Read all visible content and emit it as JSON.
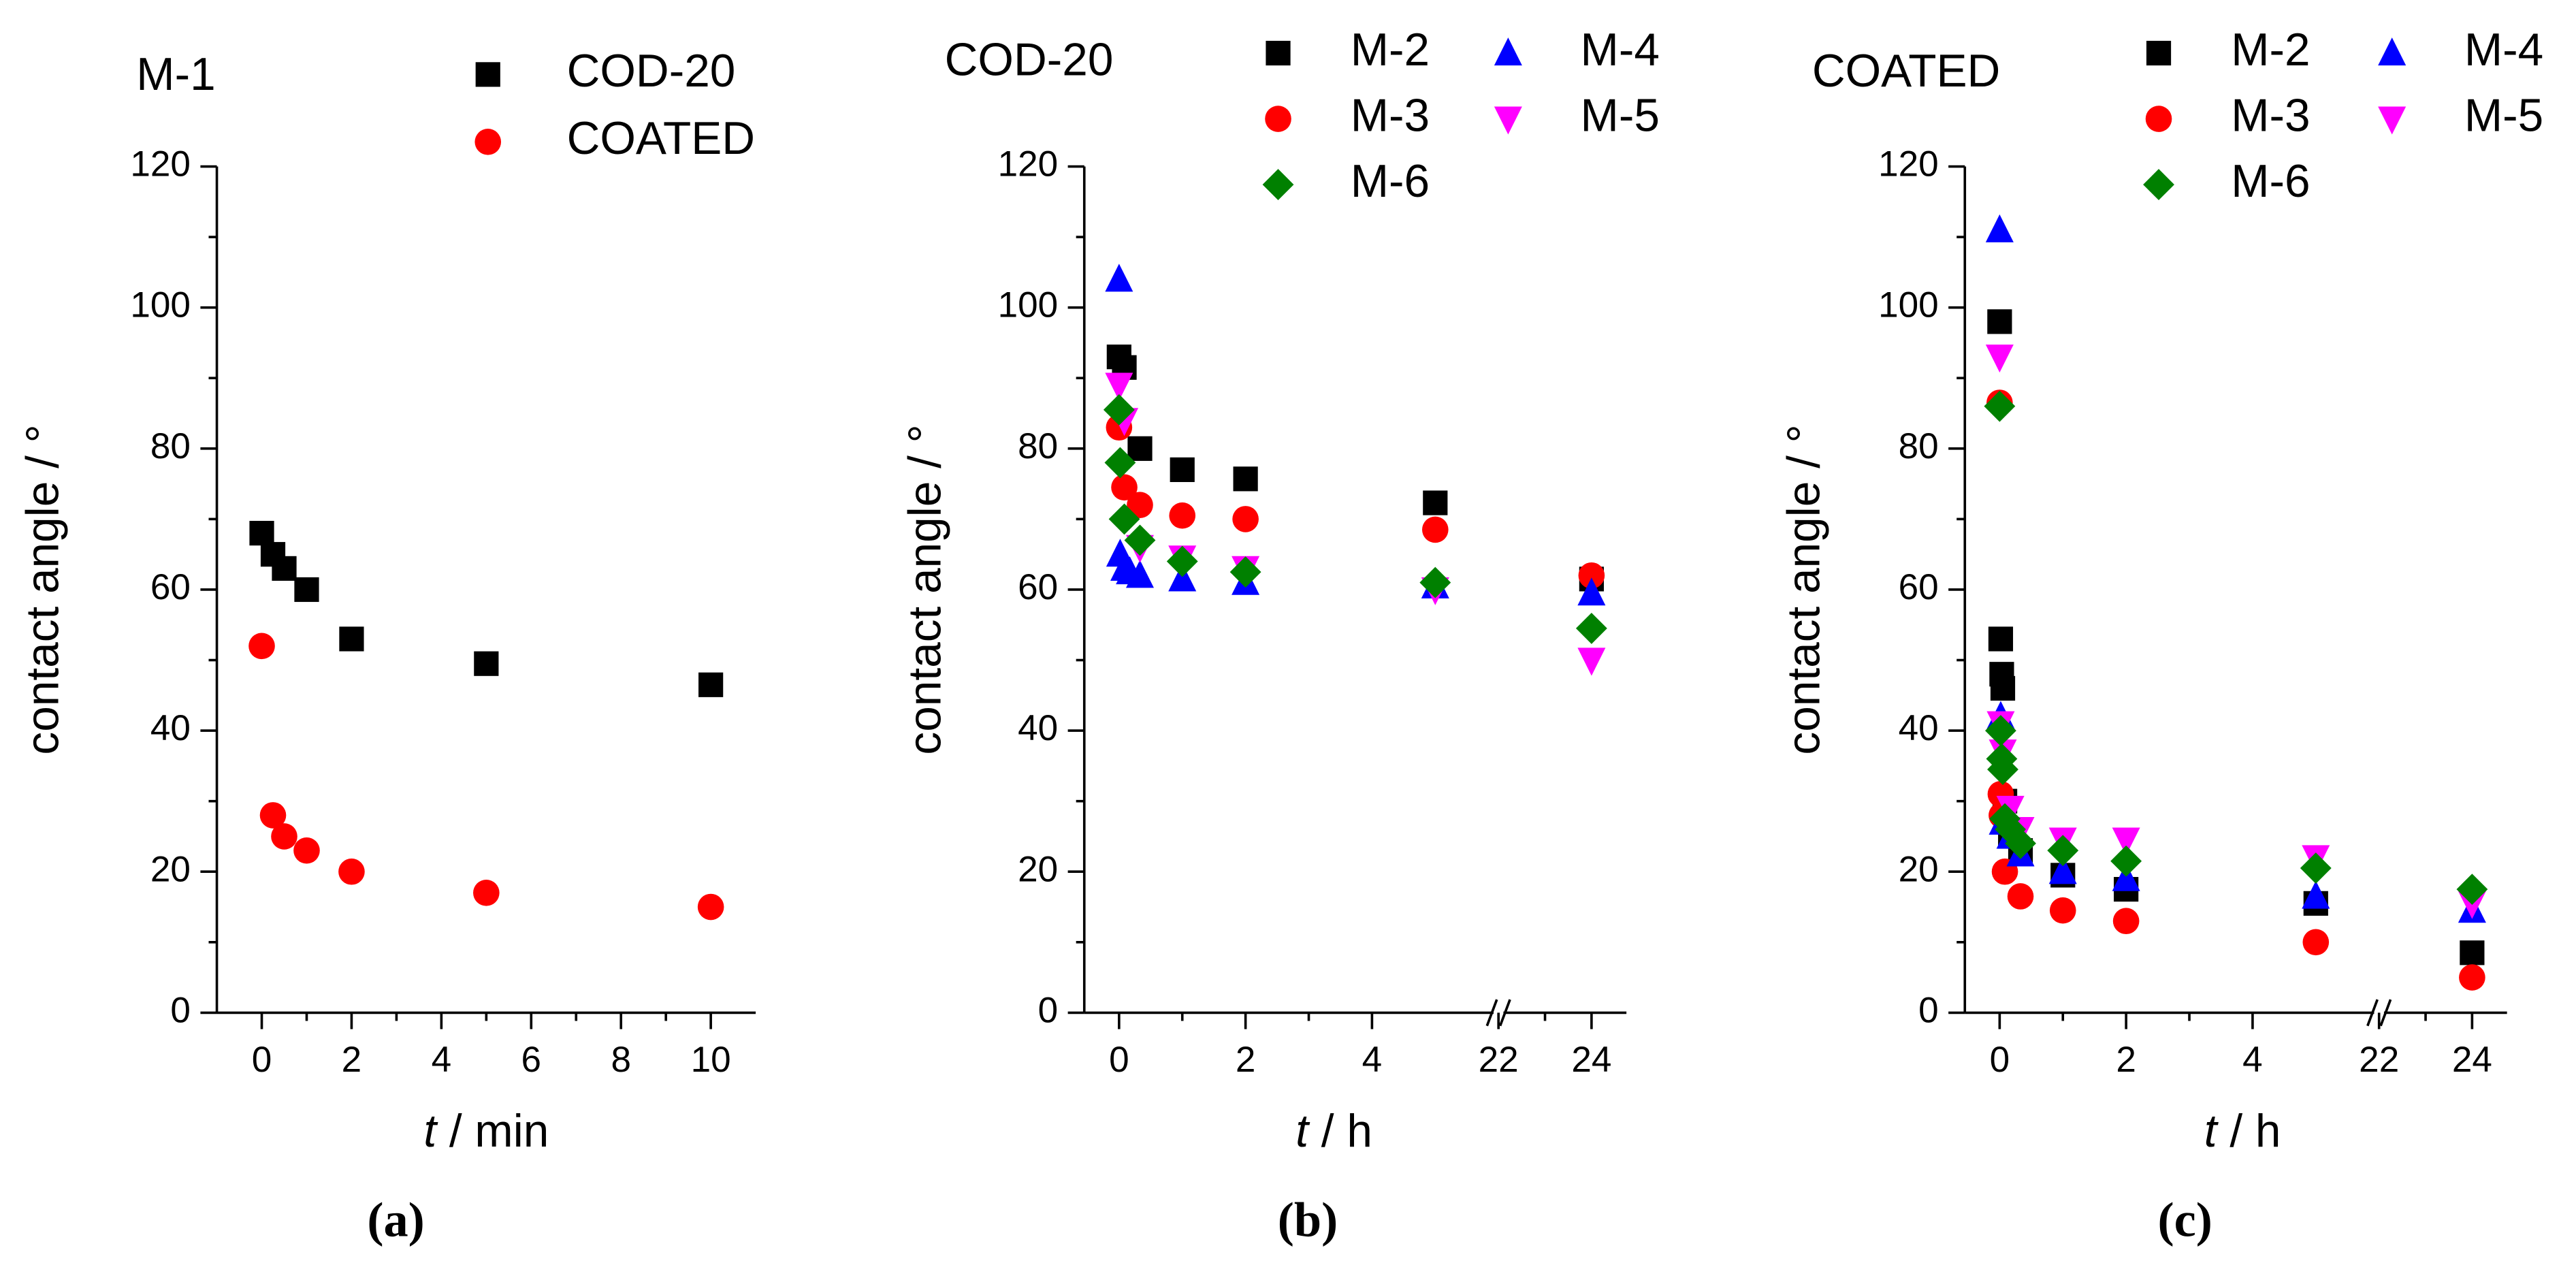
{
  "chart_data": [
    {
      "type": "scatter",
      "title": "M-1",
      "x_label_symbol": "t",
      "x_label_unit": "/ min",
      "y_label": "contact angle / °",
      "panel_label": "(a)",
      "xlim": [
        -1,
        11
      ],
      "xticks": [
        0,
        2,
        4,
        6,
        8,
        10
      ],
      "ylim": [
        0,
        120
      ],
      "yticks": [
        0,
        20,
        40,
        60,
        80,
        100,
        120
      ],
      "series": [
        {
          "name": "COD-20",
          "color": "#000000",
          "marker": "square",
          "x": [
            0,
            0.25,
            0.5,
            1,
            2,
            5,
            10
          ],
          "values": [
            68,
            65,
            63,
            60,
            53,
            49.5,
            46.5
          ]
        },
        {
          "name": "COATED",
          "color": "#ff0000",
          "marker": "circle",
          "x": [
            0,
            0.25,
            0.5,
            1,
            2,
            5,
            10
          ],
          "values": [
            52,
            28,
            25,
            23,
            20,
            17,
            15
          ]
        }
      ]
    },
    {
      "type": "scatter",
      "title": "COD-20",
      "x_label_symbol": "t",
      "x_label_unit": "/ h",
      "y_label": "contact angle / °",
      "panel_label": "(b)",
      "xlim": [
        -0.55,
        24.75
      ],
      "xbreak": [
        6,
        22
      ],
      "xticks": [
        0,
        2,
        4,
        22,
        24
      ],
      "ylim": [
        0,
        120
      ],
      "yticks": [
        0,
        20,
        40,
        60,
        80,
        100,
        120
      ],
      "series": [
        {
          "name": "M-2",
          "color": "#000000",
          "marker": "square",
          "x": [
            0,
            0.083,
            0.33,
            1,
            2,
            5,
            24
          ],
          "values": [
            93,
            91.5,
            80,
            77,
            75.7,
            72.3,
            61.5
          ]
        },
        {
          "name": "M-3",
          "color": "#ff0000",
          "marker": "circle",
          "x": [
            0,
            0.083,
            0.33,
            1,
            2,
            5,
            24
          ],
          "values": [
            83,
            74.5,
            72,
            70.5,
            70,
            68.5,
            62
          ]
        },
        {
          "name": "M-4",
          "color": "#0000ff",
          "marker": "triangle",
          "x": [
            0,
            0.017,
            0.083,
            0.17,
            0.33,
            1,
            2,
            5,
            24
          ],
          "values": [
            104,
            65,
            63,
            62.5,
            62,
            61.5,
            61,
            60.5,
            59.5
          ]
        },
        {
          "name": "M-5",
          "color": "#ff00ff",
          "marker": "triangle-down",
          "x": [
            0,
            0.083,
            0.33,
            1,
            2,
            5,
            24
          ],
          "values": [
            89,
            84,
            66,
            64.5,
            63,
            60,
            50
          ]
        },
        {
          "name": "M-6",
          "color": "#008000",
          "marker": "diamond",
          "x": [
            0,
            0.017,
            0.083,
            0.33,
            1,
            2,
            5,
            24
          ],
          "values": [
            85.5,
            78,
            70,
            67,
            64,
            62.5,
            61,
            54.5
          ]
        }
      ]
    },
    {
      "type": "scatter",
      "title": "COATED",
      "x_label_symbol": "t",
      "x_label_unit": "/ h",
      "y_label": "contact angle / °",
      "panel_label": "(c)",
      "xlim": [
        -0.55,
        24.75
      ],
      "xbreak": [
        6,
        22
      ],
      "xticks": [
        0,
        2,
        4,
        22,
        24
      ],
      "ylim": [
        0,
        120
      ],
      "yticks": [
        0,
        20,
        40,
        60,
        80,
        100,
        120
      ],
      "series": [
        {
          "name": "M-2",
          "color": "#000000",
          "marker": "square",
          "x": [
            0,
            0.017,
            0.033,
            0.05,
            0.083,
            0.17,
            0.33,
            1,
            2,
            5,
            24
          ],
          "values": [
            98,
            53,
            48,
            46,
            30,
            25,
            23,
            19.5,
            17.5,
            15.5,
            8.5
          ]
        },
        {
          "name": "M-3",
          "color": "#ff0000",
          "marker": "circle",
          "x": [
            0,
            0.017,
            0.033,
            0.083,
            0.33,
            1,
            2,
            5,
            24
          ],
          "values": [
            86.5,
            31,
            28,
            20,
            16.5,
            14.5,
            13,
            10,
            5
          ]
        },
        {
          "name": "M-4",
          "color": "#0000ff",
          "marker": "triangle",
          "x": [
            0,
            0.017,
            0.05,
            0.17,
            0.33,
            1,
            2,
            5,
            24
          ],
          "values": [
            111,
            42,
            27,
            25,
            22.5,
            20,
            19,
            16.5,
            14.5
          ]
        },
        {
          "name": "M-5",
          "color": "#ff00ff",
          "marker": "triangle-down",
          "x": [
            0,
            0.017,
            0.05,
            0.17,
            0.33,
            1,
            2,
            5,
            24
          ],
          "values": [
            93,
            41,
            37,
            29,
            26,
            24.5,
            24.5,
            22,
            15.5
          ]
        },
        {
          "name": "M-6",
          "color": "#008000",
          "marker": "diamond",
          "x": [
            0,
            0.017,
            0.033,
            0.05,
            0.083,
            0.17,
            0.33,
            1,
            2,
            5,
            24
          ],
          "values": [
            86,
            40,
            36,
            34.5,
            27.5,
            26,
            24,
            23,
            21.5,
            20.5,
            17.5
          ]
        }
      ]
    }
  ]
}
